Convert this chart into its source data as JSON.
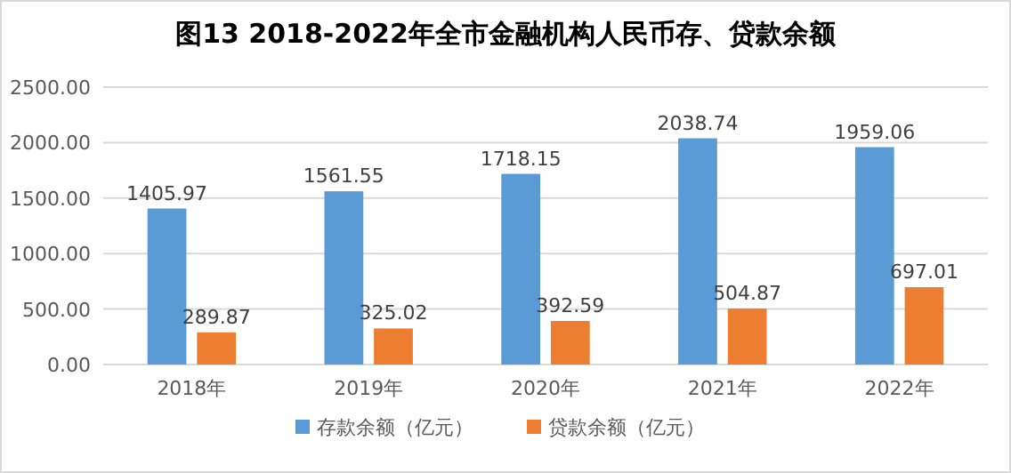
{
  "chart_data": {
    "type": "bar",
    "title": "图13   2018-2022年全市金融机构人民币存、贷款余额",
    "categories": [
      "2018年",
      "2019年",
      "2020年",
      "2021年",
      "2022年"
    ],
    "series": [
      {
        "name": "存款余额（亿元）",
        "color": "#5b9bd5",
        "values": [
          1405.97,
          1561.55,
          1718.15,
          2038.74,
          1959.06
        ]
      },
      {
        "name": "贷款余额（亿元）",
        "color": "#ed7d31",
        "values": [
          289.87,
          325.02,
          392.59,
          504.87,
          697.01
        ]
      }
    ],
    "ylim": [
      0,
      2500
    ],
    "yticks": [
      {
        "value": 0,
        "label": "0.00"
      },
      {
        "value": 500,
        "label": "500.00"
      },
      {
        "value": 1000,
        "label": "1000.00"
      },
      {
        "value": 1500,
        "label": "1500.00"
      },
      {
        "value": 2000,
        "label": "2000.00"
      },
      {
        "value": 2500,
        "label": "2500.00"
      }
    ],
    "grid": "y",
    "legend": "bottom",
    "data_labels": true
  }
}
